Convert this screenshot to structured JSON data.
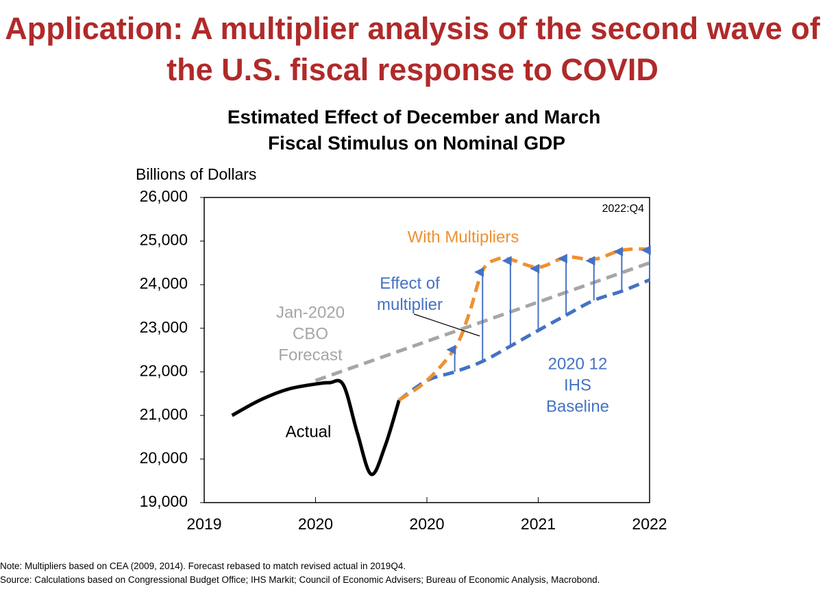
{
  "slide_title": "Application: A multiplier analysis of the second wave of the U.S. fiscal response to COVID",
  "chart_data": {
    "type": "line",
    "title": "Estimated Effect of December and March Fiscal Stimulus on Nominal GDP",
    "y_label": "Billions of Dollars",
    "xlim": [
      0,
      16
    ],
    "xticks": [
      {
        "value": 0,
        "label": "2019"
      },
      {
        "value": 4,
        "label": "2020"
      },
      {
        "value": 8,
        "label": "2020"
      },
      {
        "value": 12,
        "label": "2021"
      },
      {
        "value": 16,
        "label": "2022"
      }
    ],
    "ylim": [
      19000,
      26000
    ],
    "yticks": [
      {
        "value": 19000,
        "label": "19,000"
      },
      {
        "value": 20000,
        "label": "20,000"
      },
      {
        "value": 21000,
        "label": "21,000"
      },
      {
        "value": 22000,
        "label": "22,000"
      },
      {
        "value": 23000,
        "label": "23,000"
      },
      {
        "value": 24000,
        "label": "24,000"
      },
      {
        "value": 25000,
        "label": "25,000"
      },
      {
        "value": 26000,
        "label": "26,000"
      }
    ],
    "series": [
      {
        "name": "Actual",
        "color": "#000000",
        "dashed": false,
        "x": [
          1,
          2,
          3,
          4,
          4.5,
          5,
          5.5,
          6,
          6.5,
          7
        ],
        "values": [
          21000,
          21350,
          21600,
          21720,
          21750,
          21700,
          20600,
          19650,
          20300,
          21350
        ]
      },
      {
        "name": "Jan-2020\nCBO\nForecast",
        "color": "#a6a6a6",
        "dashed": true,
        "x": [
          4,
          8,
          12,
          16
        ],
        "values": [
          21800,
          22700,
          23600,
          24500
        ]
      },
      {
        "name": "2020 12\nIHS\nBaseline",
        "color": "#4472c4",
        "dashed": true,
        "x": [
          7,
          8,
          9,
          10,
          11,
          12,
          13,
          14,
          15,
          16
        ],
        "values": [
          21350,
          21800,
          22000,
          22240,
          22590,
          22950,
          23300,
          23640,
          23850,
          24110
        ]
      },
      {
        "name": "With Multipliers",
        "color": "#f0902e",
        "dashed": true,
        "x": [
          7,
          8,
          9,
          9.5,
          10,
          10.5,
          11,
          12,
          13,
          14,
          15,
          16
        ],
        "values": [
          21350,
          21800,
          22540,
          23300,
          24320,
          24580,
          24580,
          24400,
          24630,
          24580,
          24790,
          24820
        ]
      }
    ],
    "arrow_color": "#4472c4",
    "effect_label": "Effect of\nmultiplier",
    "corner_label": "2022:Q4"
  },
  "notes": [
    "Note: Multipliers based on CEA (2009, 2014). Forecast rebased to match revised actual in 2019Q4.",
    "Source: Calculations based on Congressional Budget Office; IHS Markit; Council of Economic Advisers; Bureau of Economic Analysis, Macrobond."
  ]
}
